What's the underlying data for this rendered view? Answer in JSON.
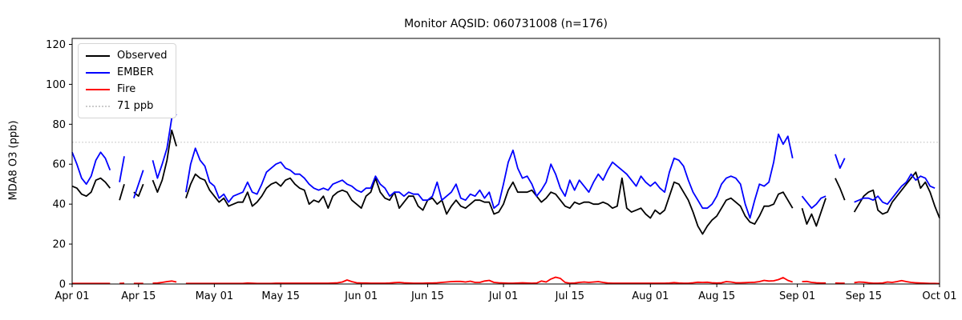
{
  "title": "Monitor AQSID: 060731008 (n=176)",
  "colors": {
    "observed": "#000000",
    "ember": "#0000ff",
    "fire": "#ff0000",
    "threshold": "#cccccc",
    "axis": "#000000",
    "background": "#ffffff"
  },
  "legend": {
    "items": [
      {
        "label": "Observed",
        "color": "#000000",
        "style": "solid"
      },
      {
        "label": "EMBER",
        "color": "#0000ff",
        "style": "solid"
      },
      {
        "label": "Fire",
        "color": "#ff0000",
        "style": "solid"
      },
      {
        "label": "71 ppb",
        "color": "#cccccc",
        "style": "dotted"
      }
    ]
  },
  "chart_data": {
    "type": "line",
    "title": "Monitor AQSID: 060731008 (n=176)",
    "xlabel": "",
    "ylabel": "MDA8 O3 (ppb)",
    "ylim": [
      0,
      123
    ],
    "y_ticks": [
      0,
      20,
      40,
      60,
      80,
      100,
      120
    ],
    "x_days_total": 183,
    "x_ticks": [
      {
        "day": 0,
        "label": "Apr 01"
      },
      {
        "day": 14,
        "label": "Apr 15"
      },
      {
        "day": 30,
        "label": "May 01"
      },
      {
        "day": 44,
        "label": "May 15"
      },
      {
        "day": 61,
        "label": "Jun 01"
      },
      {
        "day": 75,
        "label": "Jun 15"
      },
      {
        "day": 91,
        "label": "Jul 01"
      },
      {
        "day": 105,
        "label": "Jul 15"
      },
      {
        "day": 122,
        "label": "Aug 01"
      },
      {
        "day": 136,
        "label": "Aug 15"
      },
      {
        "day": 153,
        "label": "Sep 01"
      },
      {
        "day": 167,
        "label": "Sep 15"
      },
      {
        "day": 183,
        "label": "Oct 01"
      }
    ],
    "threshold": {
      "value": 71,
      "label": "71 ppb"
    },
    "legend_position": "upper left",
    "grid": false,
    "series": [
      {
        "name": "Observed",
        "color": "#000000",
        "values": [
          49,
          48,
          45,
          44,
          46,
          52,
          53,
          51,
          48,
          null,
          42,
          50,
          null,
          46,
          44,
          50,
          null,
          52,
          46,
          52,
          62,
          77,
          69,
          null,
          43,
          50,
          55,
          53,
          52,
          47,
          44,
          41,
          43,
          39,
          40,
          41,
          41,
          46,
          39,
          41,
          44,
          48,
          50,
          51,
          49,
          52,
          53,
          50,
          48,
          47,
          40,
          42,
          41,
          44,
          38,
          44,
          46,
          47,
          46,
          42,
          40,
          38,
          44,
          46,
          53,
          46,
          43,
          42,
          46,
          38,
          41,
          44,
          44,
          39,
          37,
          42,
          43,
          40,
          42,
          35,
          39,
          42,
          39,
          38,
          40,
          42,
          42,
          41,
          41,
          35,
          36,
          40,
          47,
          51,
          46,
          46,
          46,
          47,
          44,
          41,
          43,
          46,
          45,
          42,
          39,
          38,
          41,
          40,
          41,
          41,
          40,
          40,
          41,
          40,
          38,
          39,
          53,
          38,
          36,
          37,
          38,
          35,
          33,
          37,
          35,
          37,
          44,
          51,
          50,
          46,
          42,
          36,
          29,
          25,
          29,
          32,
          34,
          38,
          42,
          43,
          41,
          39,
          34,
          31,
          30,
          34,
          39,
          39,
          40,
          45,
          46,
          42,
          38,
          null,
          38,
          30,
          35,
          29,
          36,
          43,
          null,
          53,
          48,
          42,
          null,
          36,
          40,
          44,
          46,
          47,
          37,
          35,
          36,
          41,
          44,
          47,
          50,
          53,
          56,
          48,
          51,
          46,
          39,
          33
        ]
      },
      {
        "name": "EMBER",
        "color": "#0000ff",
        "values": [
          66,
          60,
          53,
          50,
          54,
          62,
          66,
          63,
          57,
          null,
          51,
          64,
          null,
          43,
          50,
          57,
          null,
          62,
          53,
          60,
          68,
          83,
          85,
          null,
          46,
          60,
          68,
          62,
          59,
          51,
          49,
          43,
          45,
          41,
          44,
          45,
          46,
          51,
          46,
          45,
          50,
          56,
          58,
          60,
          61,
          58,
          57,
          55,
          55,
          53,
          50,
          48,
          47,
          48,
          47,
          50,
          51,
          52,
          50,
          49,
          47,
          46,
          48,
          48,
          54,
          50,
          48,
          44,
          46,
          46,
          44,
          46,
          45,
          45,
          42,
          42,
          44,
          51,
          42,
          44,
          46,
          50,
          43,
          42,
          45,
          44,
          47,
          43,
          46,
          38,
          40,
          50,
          61,
          67,
          58,
          53,
          54,
          50,
          44,
          47,
          51,
          60,
          55,
          48,
          44,
          52,
          47,
          52,
          49,
          46,
          51,
          55,
          52,
          57,
          61,
          59,
          57,
          55,
          52,
          49,
          54,
          51,
          49,
          51,
          48,
          46,
          56,
          63,
          62,
          59,
          52,
          46,
          42,
          38,
          38,
          40,
          44,
          50,
          53,
          54,
          53,
          50,
          40,
          33,
          42,
          50,
          49,
          51,
          61,
          75,
          70,
          74,
          63,
          null,
          44,
          41,
          38,
          40,
          43,
          44,
          null,
          65,
          58,
          63,
          null,
          41,
          42,
          43,
          43,
          42,
          44,
          41,
          40,
          43,
          46,
          49,
          51,
          55,
          52,
          54,
          53,
          49,
          48,
          null
        ]
      },
      {
        "name": "Fire",
        "color": "#ff0000",
        "values": [
          0.3,
          0.3,
          0.3,
          0.3,
          0.3,
          0.3,
          0.3,
          0.3,
          0.3,
          null,
          0.3,
          0.4,
          null,
          0.3,
          0.3,
          0.3,
          null,
          0.4,
          0.5,
          0.8,
          1.2,
          1.5,
          1.0,
          null,
          0.3,
          0.3,
          0.3,
          0.3,
          0.3,
          0.3,
          0.3,
          0.3,
          0.3,
          0.3,
          0.3,
          0.3,
          0.3,
          0.5,
          0.4,
          0.3,
          0.3,
          0.3,
          0.3,
          0.4,
          0.4,
          0.4,
          0.4,
          0.4,
          0.4,
          0.4,
          0.4,
          0.4,
          0.4,
          0.4,
          0.4,
          0.5,
          0.6,
          1.0,
          2.0,
          1.2,
          0.6,
          0.5,
          0.5,
          0.4,
          0.4,
          0.4,
          0.4,
          0.5,
          0.7,
          0.8,
          0.6,
          0.5,
          0.4,
          0.4,
          0.4,
          0.5,
          0.5,
          0.6,
          0.8,
          1.0,
          1.2,
          1.3,
          1.3,
          1.0,
          1.4,
          0.8,
          0.8,
          1.5,
          1.8,
          0.8,
          0.6,
          0.5,
          0.4,
          0.4,
          0.5,
          0.6,
          0.5,
          0.4,
          0.5,
          1.5,
          1.0,
          2.5,
          3.4,
          2.8,
          0.8,
          0.4,
          0.5,
          0.8,
          1.0,
          0.8,
          1.0,
          1.2,
          0.8,
          0.5,
          0.4,
          0.4,
          0.4,
          0.4,
          0.4,
          0.4,
          0.4,
          0.4,
          0.4,
          0.4,
          0.4,
          0.4,
          0.5,
          0.7,
          0.5,
          0.4,
          0.4,
          0.6,
          0.9,
          0.8,
          0.9,
          0.6,
          0.5,
          0.6,
          1.2,
          1.0,
          0.6,
          0.6,
          0.7,
          0.8,
          0.9,
          1.2,
          1.8,
          1.5,
          1.6,
          2.2,
          3.2,
          1.8,
          1.0,
          null,
          1.2,
          1.3,
          0.8,
          0.6,
          0.5,
          0.5,
          null,
          0.5,
          0.4,
          0.4,
          null,
          0.7,
          1.0,
          0.9,
          0.6,
          0.4,
          0.4,
          0.5,
          1.0,
          0.8,
          1.2,
          1.7,
          1.2,
          0.8,
          0.6,
          0.5,
          0.4,
          0.3,
          0.3,
          0.2
        ]
      }
    ]
  }
}
